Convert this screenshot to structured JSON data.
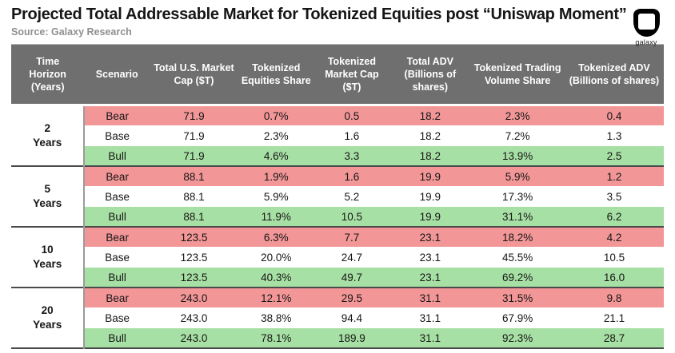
{
  "header": {
    "logo_word": "galaxy"
  },
  "colors": {
    "header_bg": "#6f6f6f",
    "header_text": "#ffffff",
    "bear_row": "#f29697",
    "base_row": "#ffffff",
    "bull_row": "#a7e0a4",
    "group_divider": "#4a4a4a",
    "horizon_divider": "#9b9b9b",
    "source_text": "#8f8f8f",
    "text_dark": "#1d1d1d"
  },
  "chart_data": {
    "type": "table",
    "title": "Projected Total Addressable Market for Tokenized Equities post “Uniswap Moment”",
    "source": "Source: Galaxy Research",
    "columns": [
      "Time Horizon (Years)",
      "Scenario",
      "Total U.S. Market Cap ($T)",
      "Tokenized Equities Share",
      "Tokenized Market Cap ($T)",
      "Total ADV (Billions of shares)",
      "Tokenized Trading Volume Share",
      "Tokenized ADV (Billions of shares)"
    ],
    "scenario_color_legend": {
      "Bear": "red",
      "Base": "white",
      "Bull": "green"
    },
    "groups": [
      {
        "horizon_years": "2",
        "horizon_label": "Years",
        "rows": [
          {
            "scenario": "Bear",
            "values": [
              "71.9",
              "0.7%",
              "0.5",
              "18.2",
              "2.3%",
              "0.4"
            ]
          },
          {
            "scenario": "Base",
            "values": [
              "71.9",
              "2.3%",
              "1.6",
              "18.2",
              "7.2%",
              "1.3"
            ]
          },
          {
            "scenario": "Bull",
            "values": [
              "71.9",
              "4.6%",
              "3.3",
              "18.2",
              "13.9%",
              "2.5"
            ]
          }
        ]
      },
      {
        "horizon_years": "5",
        "horizon_label": "Years",
        "rows": [
          {
            "scenario": "Bear",
            "values": [
              "88.1",
              "1.9%",
              "1.6",
              "19.9",
              "5.9%",
              "1.2"
            ]
          },
          {
            "scenario": "Base",
            "values": [
              "88.1",
              "5.9%",
              "5.2",
              "19.9",
              "17.3%",
              "3.5"
            ]
          },
          {
            "scenario": "Bull",
            "values": [
              "88.1",
              "11.9%",
              "10.5",
              "19.9",
              "31.1%",
              "6.2"
            ]
          }
        ]
      },
      {
        "horizon_years": "10",
        "horizon_label": "Years",
        "rows": [
          {
            "scenario": "Bear",
            "values": [
              "123.5",
              "6.3%",
              "7.7",
              "23.1",
              "18.2%",
              "4.2"
            ]
          },
          {
            "scenario": "Base",
            "values": [
              "123.5",
              "20.0%",
              "24.7",
              "23.1",
              "45.5%",
              "10.5"
            ]
          },
          {
            "scenario": "Bull",
            "values": [
              "123.5",
              "40.3%",
              "49.7",
              "23.1",
              "69.2%",
              "16.0"
            ]
          }
        ]
      },
      {
        "horizon_years": "20",
        "horizon_label": "Years",
        "rows": [
          {
            "scenario": "Bear",
            "values": [
              "243.0",
              "12.1%",
              "29.5",
              "31.1",
              "31.5%",
              "9.8"
            ]
          },
          {
            "scenario": "Base",
            "values": [
              "243.0",
              "38.8%",
              "94.4",
              "31.1",
              "67.9%",
              "21.1"
            ]
          },
          {
            "scenario": "Bull",
            "values": [
              "243.0",
              "78.1%",
              "189.9",
              "31.1",
              "92.3%",
              "28.7"
            ]
          }
        ]
      }
    ]
  }
}
